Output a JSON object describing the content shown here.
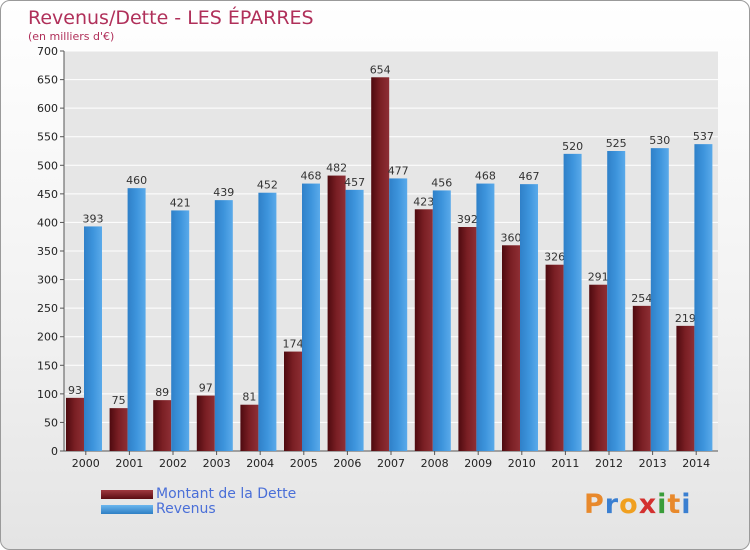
{
  "header": {
    "title": "Revenus/Dette - LES ÉPARRES",
    "subtitle": "(en milliers d'€)"
  },
  "colors": {
    "dette": "#7a1f24",
    "revenus": "#3d94dc",
    "grid": "#ffffff",
    "title": "#b0305a",
    "legend_text": "#4a6fd8"
  },
  "chart_data": {
    "type": "bar",
    "categories": [
      "2000",
      "2001",
      "2002",
      "2003",
      "2004",
      "2005",
      "2006",
      "2007",
      "2008",
      "2009",
      "2010",
      "2011",
      "2012",
      "2013",
      "2014"
    ],
    "series": [
      {
        "name": "Montant de la Dette",
        "values": [
          93,
          75,
          89,
          97,
          81,
          174,
          482,
          654,
          423,
          392,
          360,
          326,
          291,
          254,
          219
        ]
      },
      {
        "name": "Revenus",
        "values": [
          393,
          460,
          421,
          439,
          452,
          468,
          457,
          477,
          456,
          468,
          467,
          520,
          525,
          530,
          537
        ]
      }
    ],
    "ylim": [
      0,
      700
    ],
    "yticks": [
      0,
      50,
      100,
      150,
      200,
      250,
      300,
      350,
      400,
      450,
      500,
      550,
      600,
      650,
      700
    ],
    "grid": true,
    "legend_position": "bottom-left"
  },
  "legend": {
    "items": [
      {
        "label": "Montant de la Dette",
        "color": "#7a1f24"
      },
      {
        "label": "Revenus",
        "color": "#3d94dc"
      }
    ]
  },
  "logo": {
    "text": "Proxiti",
    "letter_colors": [
      "#e8892c",
      "#3a7fd1",
      "#f0a020",
      "#d3302f",
      "#3a9d3a",
      "#e8892c",
      "#3a7fd1"
    ]
  }
}
